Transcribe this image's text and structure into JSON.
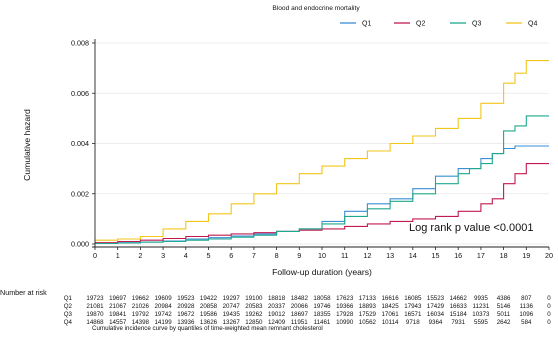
{
  "chart_data": {
    "type": "line",
    "title": "Blood and endocrine mortality",
    "xlabel": "Follow-up duration (years)",
    "ylabel": "Cumulative hazard",
    "xlim": [
      0,
      20
    ],
    "ylim": [
      0,
      0.008
    ],
    "x_ticks": [
      "0",
      "1",
      "2",
      "3",
      "4",
      "5",
      "6",
      "7",
      "8",
      "9",
      "10",
      "11",
      "12",
      "13",
      "14",
      "15",
      "16",
      "17",
      "18",
      "19",
      "20"
    ],
    "y_ticks": [
      "0.000",
      "0.002",
      "0.004",
      "0.006",
      "0.008"
    ],
    "legend_position": "top",
    "annotation": "Log rank p value <0.0001",
    "series": [
      {
        "name": "Q1",
        "color": "#3b8fd4",
        "points": [
          [
            0,
            3e-05
          ],
          [
            1,
            5e-05
          ],
          [
            2,
            8e-05
          ],
          [
            3,
            0.00012
          ],
          [
            4,
            0.0002
          ],
          [
            5,
            0.00025
          ],
          [
            6,
            0.00032
          ],
          [
            7,
            0.0004
          ],
          [
            8,
            0.0005
          ],
          [
            9,
            0.0006
          ],
          [
            10,
            0.0009
          ],
          [
            11,
            0.0013
          ],
          [
            12,
            0.0016
          ],
          [
            13,
            0.0018
          ],
          [
            14,
            0.0022
          ],
          [
            15,
            0.0027
          ],
          [
            16,
            0.003
          ],
          [
            17,
            0.0034
          ],
          [
            17.5,
            0.0036
          ],
          [
            18,
            0.0038
          ],
          [
            18.5,
            0.0039
          ],
          [
            20,
            0.0039
          ]
        ]
      },
      {
        "name": "Q2",
        "color": "#c21a4e",
        "points": [
          [
            0,
            5e-05
          ],
          [
            1,
            0.0001
          ],
          [
            2,
            0.00015
          ],
          [
            3,
            0.00022
          ],
          [
            4,
            0.0003
          ],
          [
            5,
            0.00035
          ],
          [
            6,
            0.0004
          ],
          [
            7,
            0.00045
          ],
          [
            8,
            0.0005
          ],
          [
            9,
            0.00055
          ],
          [
            10,
            0.0006
          ],
          [
            11,
            0.0007
          ],
          [
            12,
            0.0008
          ],
          [
            13,
            0.0009
          ],
          [
            14,
            0.001
          ],
          [
            15,
            0.0011
          ],
          [
            16,
            0.0013
          ],
          [
            17,
            0.0016
          ],
          [
            17.5,
            0.0018
          ],
          [
            18,
            0.0024
          ],
          [
            18.5,
            0.0028
          ],
          [
            19,
            0.0032
          ],
          [
            20,
            0.0032
          ]
        ]
      },
      {
        "name": "Q3",
        "color": "#1ea88c",
        "points": [
          [
            0,
            2e-05
          ],
          [
            1,
            4e-05
          ],
          [
            2,
            7e-05
          ],
          [
            3,
            0.0001
          ],
          [
            4,
            0.00015
          ],
          [
            5,
            0.0002
          ],
          [
            6,
            0.00027
          ],
          [
            7,
            0.00035
          ],
          [
            8,
            0.0005
          ],
          [
            9,
            0.0006
          ],
          [
            10,
            0.0008
          ],
          [
            11,
            0.0011
          ],
          [
            12,
            0.0014
          ],
          [
            13,
            0.0017
          ],
          [
            14,
            0.002
          ],
          [
            15,
            0.0024
          ],
          [
            16,
            0.0028
          ],
          [
            16.5,
            0.003
          ],
          [
            17,
            0.0032
          ],
          [
            17.5,
            0.0036
          ],
          [
            18,
            0.0045
          ],
          [
            18.5,
            0.0047
          ],
          [
            19,
            0.0051
          ],
          [
            20,
            0.0051
          ]
        ]
      },
      {
        "name": "Q4",
        "color": "#f2c61a",
        "points": [
          [
            0,
            0.00015
          ],
          [
            1,
            0.0002
          ],
          [
            2,
            0.0003
          ],
          [
            3,
            0.0006
          ],
          [
            4,
            0.0009
          ],
          [
            5,
            0.0012
          ],
          [
            6,
            0.0016
          ],
          [
            7,
            0.002
          ],
          [
            8,
            0.0024
          ],
          [
            9,
            0.0028
          ],
          [
            10,
            0.0031
          ],
          [
            11,
            0.0034
          ],
          [
            12,
            0.0037
          ],
          [
            13,
            0.004
          ],
          [
            14,
            0.0043
          ],
          [
            15,
            0.0046
          ],
          [
            16,
            0.005
          ],
          [
            17,
            0.0056
          ],
          [
            18,
            0.0064
          ],
          [
            18.5,
            0.0068
          ],
          [
            19,
            0.0073
          ],
          [
            20,
            0.0073
          ]
        ]
      }
    ]
  },
  "risk_table": {
    "heading": "Number at risk",
    "rows": [
      {
        "label": "Q1",
        "values": [
          "19723",
          "19697",
          "19662",
          "19609",
          "19523",
          "19422",
          "19297",
          "19100",
          "18818",
          "18482",
          "18058",
          "17623",
          "17133",
          "16616",
          "16085",
          "15523",
          "14662",
          "9935",
          "4386",
          "807",
          "0"
        ]
      },
      {
        "label": "Q2",
        "values": [
          "21081",
          "21067",
          "21026",
          "20984",
          "20928",
          "20858",
          "20747",
          "20583",
          "20337",
          "20066",
          "19746",
          "19366",
          "18893",
          "18425",
          "17943",
          "17429",
          "16633",
          "11231",
          "5146",
          "1136",
          "0"
        ]
      },
      {
        "label": "Q3",
        "values": [
          "19870",
          "19841",
          "19792",
          "19742",
          "19672",
          "19586",
          "19435",
          "19262",
          "19012",
          "18697",
          "18355",
          "17928",
          "17529",
          "17061",
          "16571",
          "16034",
          "15184",
          "10373",
          "5011",
          "1096",
          "0"
        ]
      },
      {
        "label": "Q4",
        "values": [
          "14868",
          "14557",
          "14398",
          "14199",
          "13936",
          "13626",
          "13267",
          "12850",
          "12409",
          "11951",
          "11461",
          "10990",
          "10562",
          "10114",
          "9718",
          "9364",
          "7931",
          "5595",
          "2642",
          "584",
          "0"
        ]
      }
    ]
  },
  "caption": "Cumulative incidence curve by quantiles of time-weighted mean remnant cholesterol"
}
